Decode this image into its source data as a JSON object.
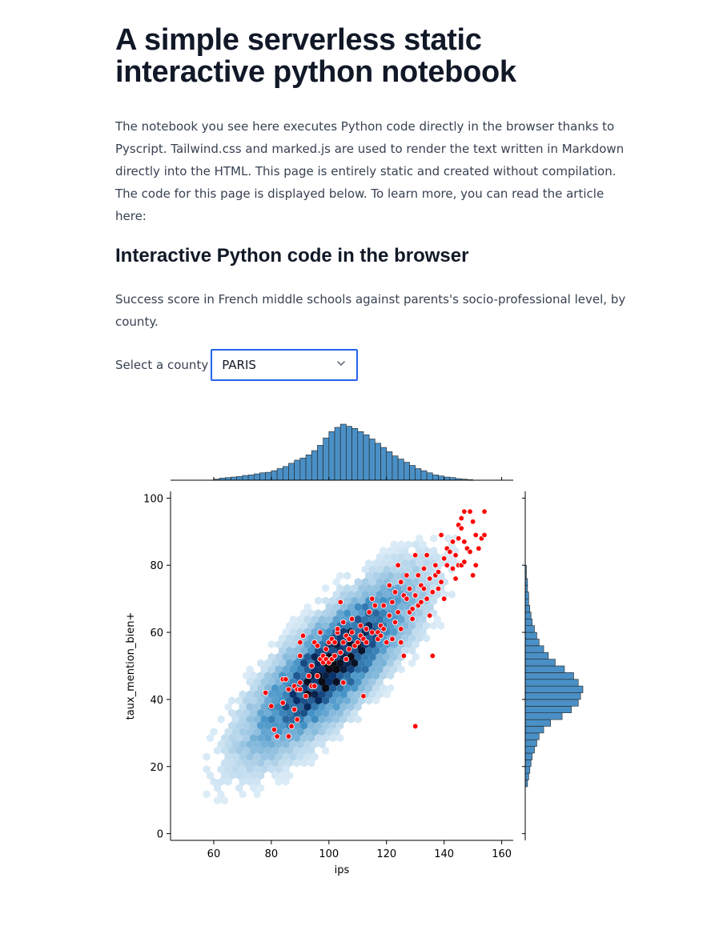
{
  "page": {
    "title": "A simple serverless static interactive python notebook",
    "intro": "The notebook you see here executes Python code directly in the browser thanks to Pyscript. Tailwind.css and marked.js are used to render the text written in Markdown directly into the HTML. This page is entirely static and created without compilation. The code for this page is displayed below. To learn more, you can read the article here:",
    "section_title": "Interactive Python code in the browser",
    "description": "Success score in French middle schools against parents's socio-professional level, by county."
  },
  "county_select": {
    "label": "Select a county",
    "value": "PARIS",
    "icon": "chevron-down-icon"
  },
  "chart_data": {
    "type": "scatter",
    "subtype": "jointplot (hexbin + scatter with marginal histograms)",
    "xlabel": "ips",
    "ylabel": "taux_mention_bien+",
    "xlim": [
      45,
      164
    ],
    "ylim": [
      -2,
      102
    ],
    "xticks": [
      60,
      80,
      100,
      120,
      140,
      160
    ],
    "yticks": [
      0,
      20,
      40,
      60,
      80,
      100
    ],
    "grid": false,
    "colors": {
      "hexbin": "#1f77b4",
      "highlight": "#ff0000",
      "hist": "#4a90c6"
    },
    "hexbin_center": {
      "x": 101,
      "y": 50
    },
    "highlight_points": [
      [
        78,
        42
      ],
      [
        80,
        38
      ],
      [
        81,
        31
      ],
      [
        82,
        29
      ],
      [
        84,
        39
      ],
      [
        84,
        46
      ],
      [
        85,
        46
      ],
      [
        86,
        43
      ],
      [
        86,
        29
      ],
      [
        87,
        32
      ],
      [
        88,
        37
      ],
      [
        88,
        44
      ],
      [
        89,
        34
      ],
      [
        89,
        43
      ],
      [
        90,
        43
      ],
      [
        90,
        45
      ],
      [
        90,
        53
      ],
      [
        90,
        57
      ],
      [
        91,
        59
      ],
      [
        92,
        41
      ],
      [
        93,
        47
      ],
      [
        94,
        44
      ],
      [
        94,
        50
      ],
      [
        95,
        44
      ],
      [
        95,
        57
      ],
      [
        96,
        56
      ],
      [
        96,
        47
      ],
      [
        97,
        52
      ],
      [
        97,
        60
      ],
      [
        98,
        51
      ],
      [
        98,
        53
      ],
      [
        99,
        52
      ],
      [
        99,
        55
      ],
      [
        100,
        51
      ],
      [
        100,
        57
      ],
      [
        101,
        52
      ],
      [
        101,
        58
      ],
      [
        102,
        53
      ],
      [
        102,
        57
      ],
      [
        103,
        60
      ],
      [
        103,
        61
      ],
      [
        104,
        54
      ],
      [
        104,
        69
      ],
      [
        105,
        45
      ],
      [
        105,
        57
      ],
      [
        105,
        63
      ],
      [
        106,
        59
      ],
      [
        106,
        52
      ],
      [
        107,
        55
      ],
      [
        107,
        58
      ],
      [
        108,
        60
      ],
      [
        108,
        64
      ],
      [
        109,
        56
      ],
      [
        110,
        57
      ],
      [
        111,
        62
      ],
      [
        111,
        59
      ],
      [
        112,
        58
      ],
      [
        112,
        41
      ],
      [
        113,
        57
      ],
      [
        113,
        61
      ],
      [
        114,
        66
      ],
      [
        115,
        60
      ],
      [
        115,
        70
      ],
      [
        116,
        68
      ],
      [
        117,
        60
      ],
      [
        117,
        58
      ],
      [
        118,
        62
      ],
      [
        118,
        59
      ],
      [
        119,
        61
      ],
      [
        119,
        68
      ],
      [
        120,
        57
      ],
      [
        121,
        74
      ],
      [
        121,
        65
      ],
      [
        122,
        69
      ],
      [
        122,
        58
      ],
      [
        123,
        72
      ],
      [
        123,
        63
      ],
      [
        124,
        80
      ],
      [
        124,
        66
      ],
      [
        125,
        75
      ],
      [
        125,
        61
      ],
      [
        125,
        57
      ],
      [
        126,
        71
      ],
      [
        126,
        53
      ],
      [
        127,
        70
      ],
      [
        127,
        77
      ],
      [
        128,
        73
      ],
      [
        128,
        66
      ],
      [
        129,
        67
      ],
      [
        129,
        64
      ],
      [
        130,
        83
      ],
      [
        130,
        71
      ],
      [
        130,
        32
      ],
      [
        131,
        68
      ],
      [
        131,
        77
      ],
      [
        132,
        74
      ],
      [
        132,
        69
      ],
      [
        133,
        79
      ],
      [
        133,
        73
      ],
      [
        134,
        83
      ],
      [
        134,
        70
      ],
      [
        135,
        76
      ],
      [
        135,
        65
      ],
      [
        136,
        72
      ],
      [
        136,
        53
      ],
      [
        137,
        77
      ],
      [
        137,
        80
      ],
      [
        138,
        78
      ],
      [
        138,
        73
      ],
      [
        139,
        89
      ],
      [
        139,
        75
      ],
      [
        140,
        82
      ],
      [
        140,
        70
      ],
      [
        141,
        80
      ],
      [
        141,
        85
      ],
      [
        142,
        84
      ],
      [
        143,
        87
      ],
      [
        143,
        79
      ],
      [
        144,
        83
      ],
      [
        144,
        76
      ],
      [
        145,
        92
      ],
      [
        145,
        88
      ],
      [
        145,
        80
      ],
      [
        146,
        91
      ],
      [
        146,
        94
      ],
      [
        146,
        80
      ],
      [
        147,
        96
      ],
      [
        147,
        87
      ],
      [
        147,
        81
      ],
      [
        148,
        85
      ],
      [
        149,
        96
      ],
      [
        149,
        84
      ],
      [
        150,
        93
      ],
      [
        150,
        77
      ],
      [
        151,
        89
      ],
      [
        151,
        80
      ],
      [
        152,
        85
      ],
      [
        153,
        88
      ],
      [
        154,
        96
      ],
      [
        154,
        89
      ]
    ],
    "x_marginal": {
      "bin_start": 60,
      "bin_width": 2,
      "counts": [
        2,
        4,
        5,
        6,
        7,
        9,
        10,
        12,
        14,
        15,
        18,
        22,
        26,
        32,
        38,
        42,
        48,
        56,
        66,
        80,
        92,
        100,
        106,
        102,
        98,
        92,
        86,
        78,
        70,
        62,
        54,
        46,
        40,
        34,
        28,
        22,
        18,
        14,
        10,
        8,
        6,
        5,
        3,
        2,
        1
      ]
    },
    "y_marginal": {
      "bin_start": 14,
      "bin_width": 2,
      "counts": [
        2,
        3,
        4,
        5,
        6,
        8,
        10,
        12,
        16,
        22,
        32,
        40,
        46,
        48,
        50,
        46,
        42,
        34,
        26,
        20,
        16,
        12,
        10,
        8,
        6,
        5,
        4,
        3,
        3,
        2,
        2,
        1,
        1
      ]
    }
  }
}
